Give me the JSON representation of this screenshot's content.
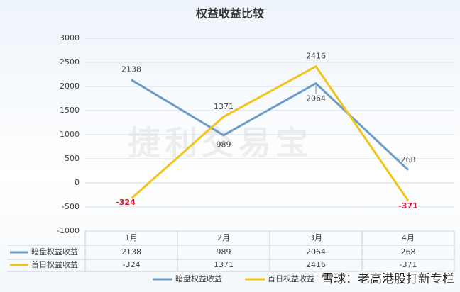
{
  "chart_data": {
    "type": "line",
    "title": "权益收益比较",
    "categories": [
      "1月",
      "2月",
      "3月",
      "4月"
    ],
    "series": [
      {
        "name": "暗盘权益收益",
        "color": "#6a9cc9",
        "values": [
          2138,
          989,
          2064,
          268
        ]
      },
      {
        "name": "首日权益收益",
        "color": "#f2c319",
        "values": [
          -324,
          1371,
          2416,
          -371
        ],
        "negative_label_color": "#d8102e"
      }
    ],
    "ylim": [
      -1000,
      3000
    ],
    "yticks": [
      -1000,
      -500,
      0,
      500,
      1000,
      1500,
      2000,
      2500,
      3000
    ],
    "grid": true,
    "watermark": "捷利交易宝",
    "footer_watermark": "雪球：老高港股打新专栏"
  }
}
